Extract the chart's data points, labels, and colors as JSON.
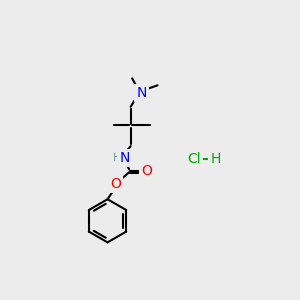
{
  "bg_color": "#ececec",
  "atom_colors": {
    "N": "#0000ff",
    "O": "#ff0000",
    "C": "#000000",
    "H": "#6e9e9e",
    "Cl": "#00aa00"
  },
  "bond_color": "#000000",
  "bond_width": 1.5,
  "font_size_atom": 9,
  "HCl_color": "#00aa00"
}
